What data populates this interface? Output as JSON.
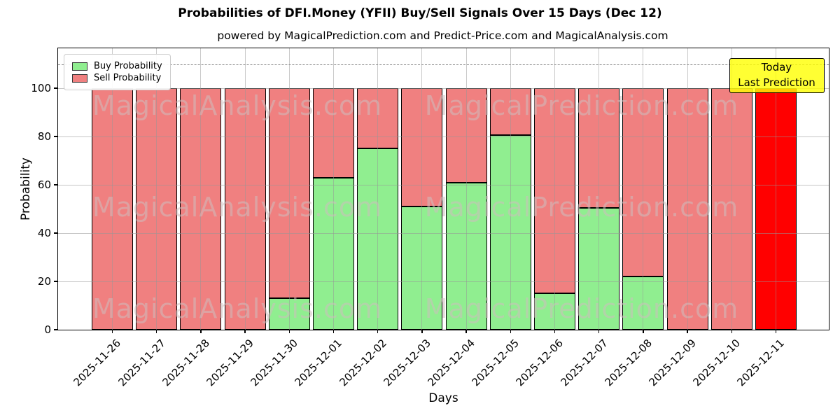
{
  "title": "Probabilities of DFI.Money (YFII) Buy/Sell Signals Over 15 Days (Dec 12)",
  "subtitle": "powered by MagicalPrediction.com and Predict-Price.com and MagicalAnalysis.com",
  "watermarks": {
    "left": "MagicalAnalysis.com",
    "right": "MagicalPrediction.com"
  },
  "legend": [
    {
      "label": "Buy Probability",
      "color": "#90EE90"
    },
    {
      "label": "Sell Probability",
      "color": "#F08080"
    }
  ],
  "annotation": {
    "line1": "Today",
    "line2": "Last Prediction",
    "bg_color": "#FFFF00"
  },
  "axes": {
    "ylabel": "Probability",
    "xlabel": "Days",
    "yticks": [
      0,
      20,
      40,
      60,
      80,
      100
    ],
    "ylim": [
      0,
      116.5
    ],
    "dashed_line_y": 110,
    "grid": true
  },
  "chart_data": {
    "type": "bar",
    "stacked": true,
    "title": "Probabilities of DFI.Money (YFII) Buy/Sell Signals Over 15 Days (Dec 12)",
    "xlabel": "Days",
    "ylabel": "Probability",
    "ylim": [
      0,
      116.5
    ],
    "legend_position": "upper left",
    "categories": [
      "2025-11-26",
      "2025-11-27",
      "2025-11-28",
      "2025-11-29",
      "2025-11-30",
      "2025-12-01",
      "2025-12-02",
      "2025-12-03",
      "2025-12-04",
      "2025-12-05",
      "2025-12-06",
      "2025-12-07",
      "2025-12-08",
      "2025-12-09",
      "2025-12-10",
      "2025-12-11"
    ],
    "series": [
      {
        "name": "Buy Probability",
        "color": "#90EE90",
        "values": [
          0,
          0,
          0,
          0,
          13,
          63,
          75,
          51,
          61,
          80.5,
          15,
          50.5,
          22,
          0,
          0,
          0
        ]
      },
      {
        "name": "Sell Probability",
        "color": "#F08080",
        "values": [
          100,
          100,
          100,
          100,
          87,
          37,
          25,
          49,
          39,
          19.5,
          85,
          49.5,
          78,
          100,
          100,
          100
        ]
      }
    ],
    "today_bar": {
      "index": 15,
      "sell_color": "#FF0000",
      "label": "Today Last Prediction"
    }
  }
}
